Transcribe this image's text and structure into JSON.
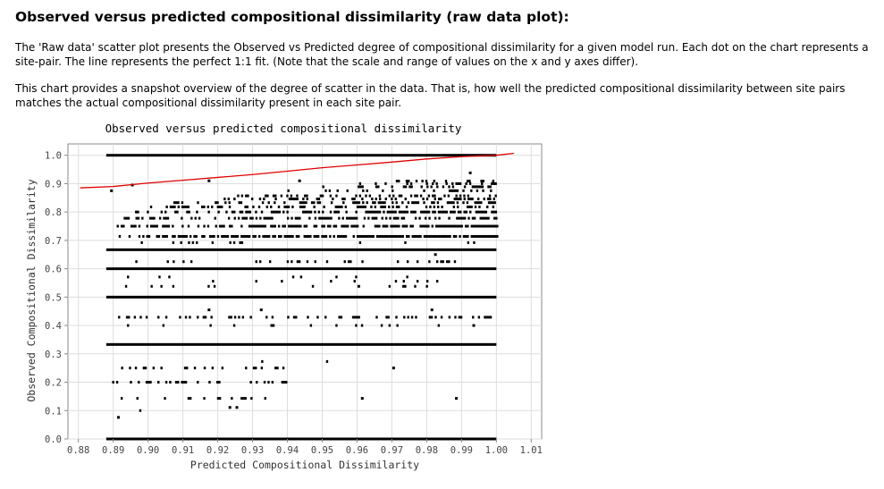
{
  "page": {
    "title": "Observed versus predicted compositional dissimilarity (raw data plot):",
    "paragraphs": [
      "The 'Raw data' scatter plot presents the Observed vs Predicted degree of compositional dissimilarity for a given model run. Each dot on the chart represents a site-pair. The line represents the perfect 1:1 fit. (Note that the scale and range of values on the x and y axes differ).",
      "This chart provides a snapshot overview of the degree of scatter in the data. That is, how well the predicted compositional dissimilarity between site pairs matches the actual compositional dissimilarity present in each site pair."
    ]
  },
  "chart_data": {
    "type": "scatter",
    "title": "Observed versus predicted compositional dissimilarity",
    "xlabel": "Predicted Compositional Dissimilarity",
    "ylabel": "Observed Compositional Dissimilarity",
    "xlim": [
      0.877,
      1.013
    ],
    "ylim": [
      0.0,
      1.04
    ],
    "x_ticks": [
      0.88,
      0.89,
      0.9,
      0.91,
      0.92,
      0.93,
      0.94,
      0.95,
      0.96,
      0.97,
      0.98,
      0.99,
      1.0,
      1.01
    ],
    "x_tick_labels": [
      "0.88",
      "0.89",
      "0.90",
      "0.91",
      "0.92",
      "0.93",
      "0.94",
      "0.95",
      "0.96",
      "0.97",
      "0.98",
      "0.99",
      "1.00",
      "1.01"
    ],
    "y_ticks": [
      0.0,
      0.1,
      0.2,
      0.3,
      0.4,
      0.5,
      0.6,
      0.7,
      0.8,
      0.9,
      1.0
    ],
    "y_tick_labels": [
      "0.0",
      "0.1",
      "0.2",
      "0.3",
      "0.4",
      "0.5",
      "0.6",
      "0.7",
      "0.8",
      "0.9",
      "1.0"
    ],
    "grid": true,
    "colors": {
      "points": "#000000",
      "fit_line": "#e00000",
      "grid": "#dddddd",
      "axis": "#888888"
    },
    "fit_line": {
      "x": [
        0.8805,
        0.89,
        0.9,
        0.91,
        0.92,
        0.93,
        0.94,
        0.95,
        0.96,
        0.97,
        0.98,
        0.99,
        1.0,
        1.005
      ],
      "y": [
        0.885,
        0.89,
        0.902,
        0.912,
        0.922,
        0.932,
        0.944,
        0.956,
        0.966,
        0.976,
        0.987,
        0.995,
        1.0,
        1.007
      ]
    },
    "solid_rows": [
      {
        "y": 1.0,
        "x_from": 0.888,
        "x_to": 1.0
      },
      {
        "y": 0.667,
        "x_from": 0.888,
        "x_to": 1.0
      },
      {
        "y": 0.6,
        "x_from": 0.888,
        "x_to": 1.0
      },
      {
        "y": 0.5,
        "x_from": 0.888,
        "x_to": 1.0
      },
      {
        "y": 0.333,
        "x_from": 0.888,
        "x_to": 1.0
      },
      {
        "y": 0.0,
        "x_from": 0.888,
        "x_to": 1.0
      }
    ],
    "dense_rows": [
      {
        "y": 0.714,
        "x_from": 0.891,
        "x_to": 1.0,
        "density": 0.9
      },
      {
        "y": 0.75,
        "x_from": 0.891,
        "x_to": 1.0,
        "density": 0.85
      },
      {
        "y": 0.778,
        "x_from": 0.893,
        "x_to": 1.0,
        "density": 0.6
      },
      {
        "y": 0.8,
        "x_from": 0.894,
        "x_to": 1.0,
        "density": 0.65
      },
      {
        "y": 0.818,
        "x_from": 0.9,
        "x_to": 1.0,
        "density": 0.45
      },
      {
        "y": 0.833,
        "x_from": 0.905,
        "x_to": 1.0,
        "density": 0.5
      },
      {
        "y": 0.846,
        "x_from": 0.92,
        "x_to": 1.0,
        "density": 0.35
      },
      {
        "y": 0.857,
        "x_from": 0.925,
        "x_to": 1.0,
        "density": 0.4
      },
      {
        "y": 0.875,
        "x_from": 0.94,
        "x_to": 1.0,
        "density": 0.35
      },
      {
        "y": 0.889,
        "x_from": 0.95,
        "x_to": 1.0,
        "density": 0.3
      },
      {
        "y": 0.9,
        "x_from": 0.96,
        "x_to": 1.0,
        "density": 0.3
      },
      {
        "y": 0.909,
        "x_from": 0.97,
        "x_to": 1.0,
        "density": 0.3
      },
      {
        "y": 0.429,
        "x_from": 0.888,
        "x_to": 0.999,
        "density": 0.4
      },
      {
        "y": 0.2,
        "x_from": 0.888,
        "x_to": 0.94,
        "density": 0.4
      },
      {
        "y": 0.25,
        "x_from": 0.89,
        "x_to": 0.94,
        "density": 0.2
      },
      {
        "y": 0.143,
        "x_from": 0.891,
        "x_to": 0.934,
        "density": 0.2
      },
      {
        "y": 0.625,
        "x_from": 0.889,
        "x_to": 0.99,
        "density": 0.15
      },
      {
        "y": 0.556,
        "x_from": 0.889,
        "x_to": 0.985,
        "density": 0.12
      },
      {
        "y": 0.4,
        "x_from": 0.89,
        "x_to": 0.985,
        "density": 0.12
      },
      {
        "y": 0.538,
        "x_from": 0.89,
        "x_to": 0.98,
        "density": 0.08
      },
      {
        "y": 0.571,
        "x_from": 0.89,
        "x_to": 0.98,
        "density": 0.08
      },
      {
        "y": 0.692,
        "x_from": 0.89,
        "x_to": 0.995,
        "density": 0.1
      },
      {
        "y": 0.273,
        "x_from": 0.889,
        "x_to": 0.97,
        "density": 0.05
      },
      {
        "y": 0.1,
        "x_from": 0.889,
        "x_to": 0.925,
        "density": 0.06
      }
    ],
    "scattered_points": [
      {
        "x": 0.8915,
        "y": 0.076
      },
      {
        "x": 0.8895,
        "y": 0.875
      },
      {
        "x": 0.8955,
        "y": 0.895
      },
      {
        "x": 0.9175,
        "y": 0.91
      },
      {
        "x": 0.9435,
        "y": 0.91
      },
      {
        "x": 0.9925,
        "y": 0.938
      },
      {
        "x": 0.9175,
        "y": 0.455
      },
      {
        "x": 0.9325,
        "y": 0.455
      },
      {
        "x": 0.9815,
        "y": 0.455
      },
      {
        "x": 0.9605,
        "y": 0.538
      },
      {
        "x": 0.9825,
        "y": 0.65
      },
      {
        "x": 0.9615,
        "y": 0.143
      },
      {
        "x": 0.9885,
        "y": 0.143
      },
      {
        "x": 0.9705,
        "y": 0.25
      },
      {
        "x": 0.9355,
        "y": 0.4
      },
      {
        "x": 0.9935,
        "y": 0.4
      },
      {
        "x": 0.9255,
        "y": 0.111
      },
      {
        "x": 0.9235,
        "y": 0.111
      }
    ]
  }
}
